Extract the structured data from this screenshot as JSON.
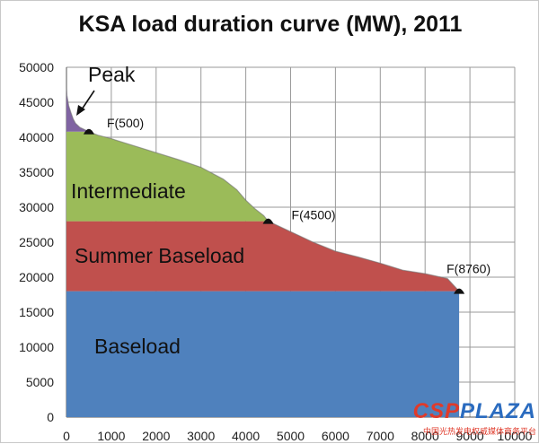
{
  "chart_data": {
    "type": "area",
    "title": "KSA load duration curve (MW), 2011",
    "xlim": [
      0,
      10000
    ],
    "ylim": [
      0,
      50000
    ],
    "x_ticks": [
      0,
      1000,
      2000,
      3000,
      4000,
      5000,
      6000,
      7000,
      8000,
      9000,
      10000
    ],
    "y_ticks": [
      0,
      5000,
      10000,
      15000,
      20000,
      25000,
      30000,
      35000,
      40000,
      45000,
      50000
    ],
    "grid": true,
    "curve": {
      "x": [
        0,
        10,
        50,
        100,
        150,
        200,
        300,
        400,
        500,
        700,
        1000,
        1500,
        2000,
        2500,
        3000,
        3500,
        3800,
        4000,
        4200,
        4400,
        4500,
        5000,
        5500,
        6000,
        6500,
        7000,
        7500,
        8000,
        8500,
        8760
      ],
      "y": [
        47000,
        46000,
        44500,
        43500,
        42600,
        42000,
        41400,
        41100,
        40800,
        40300,
        39800,
        38800,
        37800,
        36800,
        35700,
        34000,
        32500,
        31000,
        29800,
        28800,
        28000,
        26500,
        25000,
        23700,
        22900,
        22000,
        21000,
        20500,
        19800,
        18000
      ]
    },
    "series": [
      {
        "name": "Peak",
        "from_y": "F(500)",
        "color": "#8064a2"
      },
      {
        "name": "Intermediate",
        "from_y": 28000,
        "color": "#9bbb59"
      },
      {
        "name": "Summer Baseload",
        "from_y": 18000,
        "color": "#c0504d"
      },
      {
        "name": "Baseload",
        "from_y": 0,
        "color": "#4f81bd"
      }
    ],
    "markers": [
      {
        "label": "F(500)",
        "x": 500,
        "y": 40800
      },
      {
        "label": "F(4500)",
        "x": 4500,
        "y": 28000
      },
      {
        "label": "F(8760)",
        "x": 8760,
        "y": 18000
      }
    ],
    "annotations": [
      {
        "text": "Peak",
        "points_to": "peak-region"
      }
    ]
  },
  "watermark": {
    "main_red": "CSP",
    "main_blue": "PLAZA",
    "sub": "中国光热发电权威媒体商务平台"
  }
}
